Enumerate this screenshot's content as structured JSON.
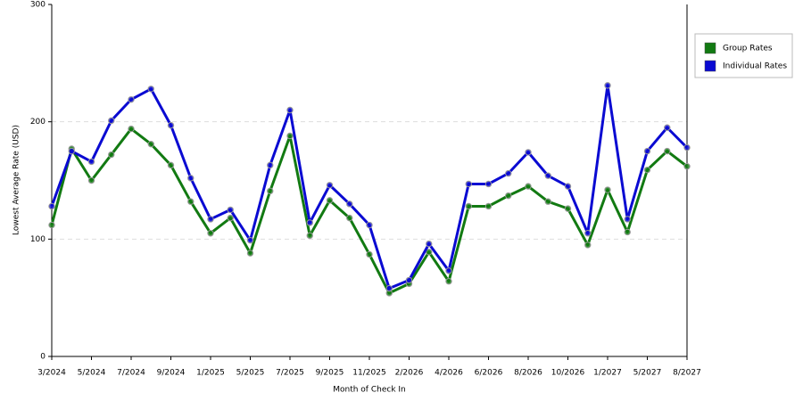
{
  "chart_data": {
    "type": "line",
    "x_label": "Month of Check In",
    "y_label": "Lowest Average Rate (USD)",
    "categories": [
      "3/2024",
      null,
      "5/2024",
      null,
      "7/2024",
      null,
      "9/2024",
      null,
      "1/2025",
      null,
      "5/2025",
      null,
      "7/2025",
      null,
      "9/2025",
      null,
      "11/2025",
      null,
      "2/2026",
      null,
      "4/2026",
      null,
      "6/2026",
      null,
      "8/2026",
      null,
      "10/2026",
      null,
      "1/2027",
      null,
      "5/2027",
      null,
      "8/2027"
    ],
    "series": [
      {
        "name": "Group Rates",
        "color": "#127a12",
        "values": [
          112,
          177,
          150,
          172,
          194,
          181,
          163,
          132,
          105,
          118,
          88,
          141,
          188,
          103,
          133,
          118,
          87,
          54,
          62,
          89,
          64,
          128,
          128,
          137,
          145,
          132,
          126,
          95,
          142,
          106,
          159,
          175,
          162
        ]
      },
      {
        "name": "Individual Rates",
        "color": "#0a0ad2",
        "values": [
          128,
          175,
          166,
          201,
          219,
          228,
          197,
          152,
          117,
          125,
          99,
          163,
          210,
          114,
          146,
          130,
          112,
          58,
          65,
          96,
          73,
          147,
          147,
          156,
          174,
          154,
          145,
          105,
          231,
          117,
          175,
          195,
          178
        ]
      }
    ],
    "ylim": [
      0,
      300
    ],
    "yticks": [
      0,
      100,
      200,
      300
    ],
    "grid": true,
    "legend": "right"
  }
}
